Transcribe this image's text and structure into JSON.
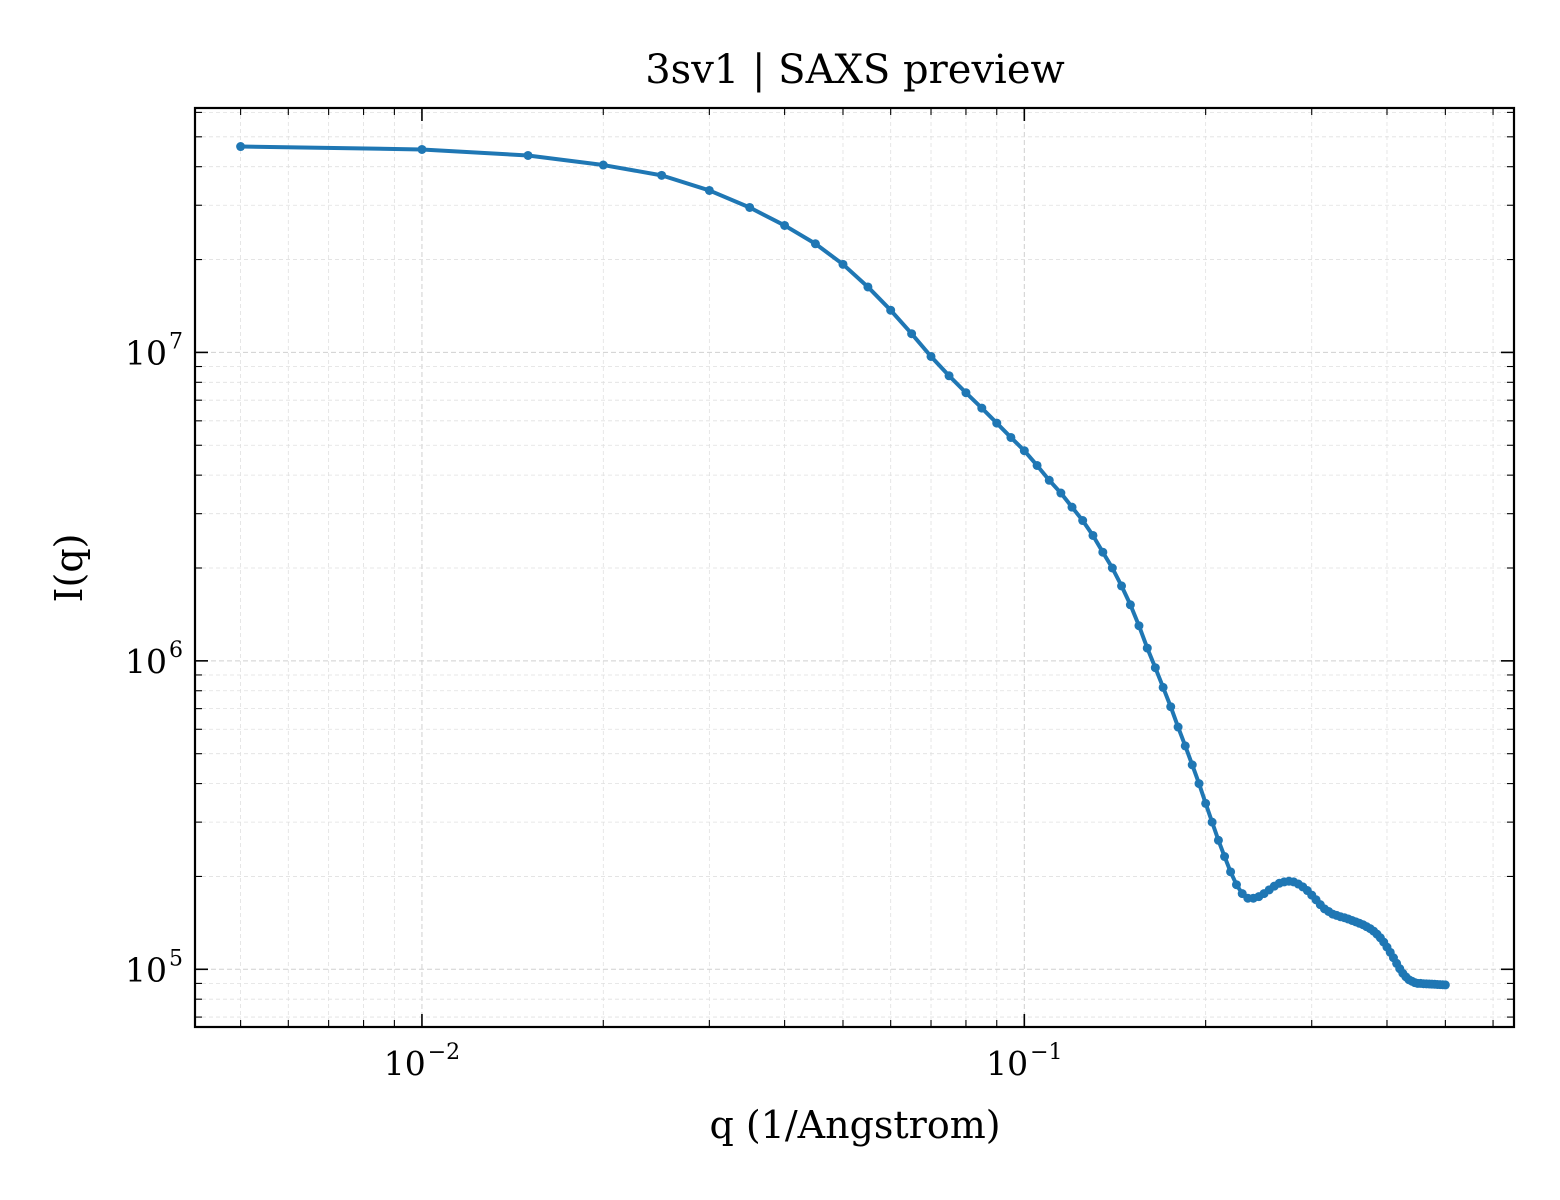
{
  "chart_data": {
    "type": "line",
    "title": "3sv1 | SAXS preview",
    "xlabel": "q (1/Angstrom)",
    "ylabel": "I(q)",
    "xscale": "log",
    "yscale": "log",
    "xlim": [
      0.0042,
      0.65
    ],
    "ylim": [
      65000,
      62000000
    ],
    "grid": true,
    "legend": "none",
    "colors": {
      "series": "#1f77b4",
      "axes": "#000000",
      "grid": "#d0d0d0"
    },
    "x_ticks": [
      {
        "base": "10",
        "exp": "−2",
        "value": 0.01
      },
      {
        "base": "10",
        "exp": "−1",
        "value": 0.1
      }
    ],
    "y_ticks": [
      {
        "base": "10",
        "exp": "5",
        "value": 100000
      },
      {
        "base": "10",
        "exp": "6",
        "value": 1000000
      },
      {
        "base": "10",
        "exp": "7",
        "value": 10000000
      }
    ],
    "series": [
      {
        "x": [
          0.005,
          0.01,
          0.015,
          0.02,
          0.025,
          0.03,
          0.035,
          0.04,
          0.045,
          0.05,
          0.055,
          0.06,
          0.065,
          0.07,
          0.075,
          0.08,
          0.085,
          0.09,
          0.095,
          0.1,
          0.105,
          0.11,
          0.115,
          0.12,
          0.125,
          0.13,
          0.135,
          0.14,
          0.145,
          0.15,
          0.155,
          0.16,
          0.165,
          0.17,
          0.175,
          0.18,
          0.185,
          0.19,
          0.195,
          0.2,
          0.205,
          0.21,
          0.215,
          0.22,
          0.225,
          0.23,
          0.235,
          0.24,
          0.245,
          0.25,
          0.255,
          0.26,
          0.265,
          0.27,
          0.275,
          0.28,
          0.285,
          0.29,
          0.295,
          0.3,
          0.305,
          0.31,
          0.315,
          0.32,
          0.325,
          0.33,
          0.335,
          0.34,
          0.345,
          0.35,
          0.355,
          0.36,
          0.365,
          0.37,
          0.375,
          0.38,
          0.385,
          0.39,
          0.395,
          0.4,
          0.405,
          0.41,
          0.415,
          0.42,
          0.425,
          0.43,
          0.435,
          0.44,
          0.445,
          0.45,
          0.455,
          0.46,
          0.465,
          0.47,
          0.475,
          0.48,
          0.485,
          0.49,
          0.495,
          0.5
        ],
        "y": [
          46500000,
          45500000,
          43500000,
          40500000,
          37500000,
          33500000,
          29500000,
          25800000,
          22500000,
          19300000,
          16300000,
          13700000,
          11500000,
          9700000,
          8400000,
          7400000,
          6600000,
          5900000,
          5300000,
          4800000,
          4300000,
          3850000,
          3500000,
          3150000,
          2850000,
          2550000,
          2250000,
          2000000,
          1750000,
          1520000,
          1300000,
          1100000,
          950000,
          820000,
          710000,
          610000,
          530000,
          460000,
          400000,
          345000,
          300000,
          262000,
          232000,
          207000,
          188000,
          176000,
          170000,
          170000,
          172000,
          176000,
          181000,
          186000,
          190000,
          192000,
          193000,
          192000,
          189000,
          185000,
          180000,
          174000,
          168000,
          162000,
          157000,
          154000,
          151000,
          149500,
          148000,
          147000,
          145500,
          144000,
          142500,
          141000,
          139500,
          137500,
          135500,
          133000,
          130000,
          126500,
          122500,
          118000,
          113500,
          109000,
          104500,
          100500,
          97000,
          94500,
          92500,
          91500,
          90500,
          90000,
          90000,
          89800,
          89700,
          89600,
          89500,
          89400,
          89300,
          89200,
          89100,
          89000
        ]
      }
    ]
  }
}
